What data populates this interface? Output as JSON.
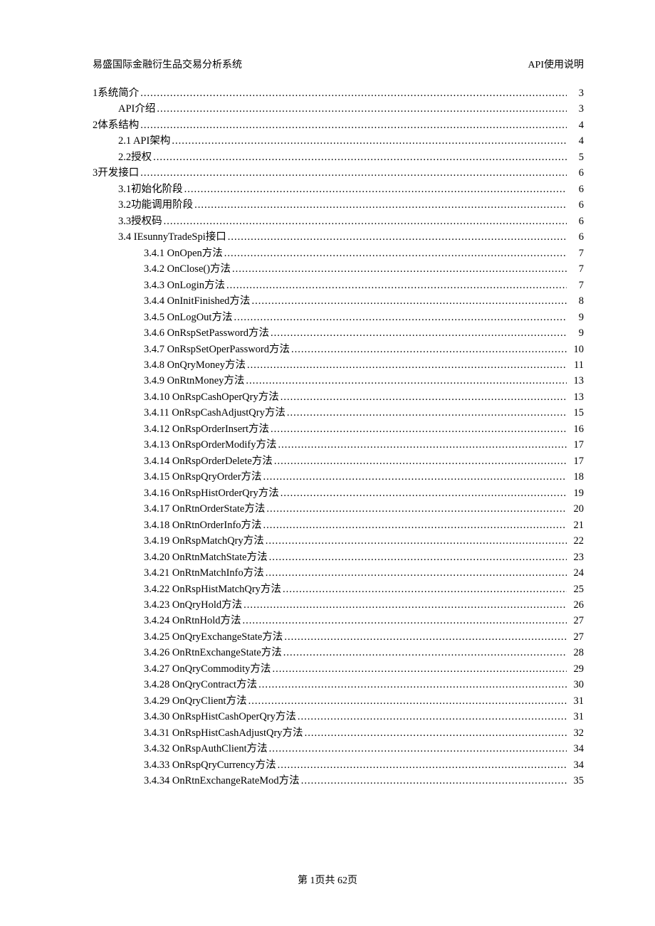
{
  "header": {
    "left": "易盛国际金融衍生品交易分析系统",
    "right": "API使用说明"
  },
  "toc": [
    {
      "indent": 0,
      "title": "1系统简介",
      "page": "3"
    },
    {
      "indent": 1,
      "title": "API介绍",
      "page": "3"
    },
    {
      "indent": 0,
      "title": "2体系结构",
      "page": "4"
    },
    {
      "indent": 1,
      "title": "2.1 API架构 ",
      "page": "4"
    },
    {
      "indent": 1,
      "title": "2.2授权",
      "page": "5"
    },
    {
      "indent": 0,
      "title": "3开发接口",
      "page": "6"
    },
    {
      "indent": 1,
      "title": "3.1初始化阶段",
      "page": "6"
    },
    {
      "indent": 1,
      "title": "3.2功能调用阶段",
      "page": "6"
    },
    {
      "indent": 1,
      "title": "3.3授权码",
      "page": "6"
    },
    {
      "indent": 1,
      "title": "3.4 IEsunnyTradeSpi接口",
      "page": "6"
    },
    {
      "indent": 2,
      "title": "3.4.1 OnOpen方法",
      "page": "7"
    },
    {
      "indent": 2,
      "title": "3.4.2 OnClose()方法",
      "page": "7"
    },
    {
      "indent": 2,
      "title": "3.4.3 OnLogin方法 ",
      "page": "7"
    },
    {
      "indent": 2,
      "title": "3.4.4 OnInitFinished方法",
      "page": "8"
    },
    {
      "indent": 2,
      "title": "3.4.5 OnLogOut方法 ",
      "page": "9"
    },
    {
      "indent": 2,
      "title": "3.4.6 OnRspSetPassword方法 ",
      "page": "9"
    },
    {
      "indent": 2,
      "title": "3.4.7 OnRspSetOperPassword方法 ",
      "page": "10"
    },
    {
      "indent": 2,
      "title": "3.4.8 OnQryMoney方法 ",
      "page": "11"
    },
    {
      "indent": 2,
      "title": "3.4.9 OnRtnMoney方法",
      "page": "13"
    },
    {
      "indent": 2,
      "title": "3.4.10 OnRspCashOperQry方法 ",
      "page": "13"
    },
    {
      "indent": 2,
      "title": "3.4.11 OnRspCashAdjustQry方法",
      "page": "15"
    },
    {
      "indent": 2,
      "title": "3.4.12 OnRspOrderInsert方法 ",
      "page": "16"
    },
    {
      "indent": 2,
      "title": "3.4.13 OnRspOrderModify方法 ",
      "page": "17"
    },
    {
      "indent": 2,
      "title": "3.4.14 OnRspOrderDelete方法",
      "page": "17"
    },
    {
      "indent": 2,
      "title": "3.4.15 OnRspQryOrder方法",
      "page": "18"
    },
    {
      "indent": 2,
      "title": "3.4.16 OnRspHistOrderQry方法 ",
      "page": "19"
    },
    {
      "indent": 2,
      "title": "3.4.17 OnRtnOrderState方法",
      "page": "20"
    },
    {
      "indent": 2,
      "title": "3.4.18 OnRtnOrderInfo方法",
      "page": "21"
    },
    {
      "indent": 2,
      "title": "3.4.19 OnRspMatchQry方法 ",
      "page": "22"
    },
    {
      "indent": 2,
      "title": "3.4.20 OnRtnMatchState方法",
      "page": "23"
    },
    {
      "indent": 2,
      "title": "3.4.21 OnRtnMatchInfo方法 ",
      "page": "24"
    },
    {
      "indent": 2,
      "title": "3.4.22 OnRspHistMatchQry方法",
      "page": "25"
    },
    {
      "indent": 2,
      "title": "3.4.23 OnQryHold方法",
      "page": "26"
    },
    {
      "indent": 2,
      "title": "3.4.24 OnRtnHold方法",
      "page": "27"
    },
    {
      "indent": 2,
      "title": "3.4.25 OnQryExchangeState方法",
      "page": "27"
    },
    {
      "indent": 2,
      "title": "3.4.26 OnRtnExchangeState方法 ",
      "page": "28"
    },
    {
      "indent": 2,
      "title": "3.4.27 OnQryCommodity方法",
      "page": "29"
    },
    {
      "indent": 2,
      "title": "3.4.28 OnQryContract方法",
      "page": "30"
    },
    {
      "indent": 2,
      "title": "3.4.29 OnQryClient方法",
      "page": "31"
    },
    {
      "indent": 2,
      "title": "3.4.30 OnRspHistCashOperQry方法",
      "page": "31"
    },
    {
      "indent": 2,
      "title": "3.4.31 OnRspHistCashAdjustQry方法 ",
      "page": "32"
    },
    {
      "indent": 2,
      "title": "3.4.32 OnRspAuthClient方法",
      "page": "34"
    },
    {
      "indent": 2,
      "title": "3.4.33 OnRspQryCurrency方法",
      "page": "34"
    },
    {
      "indent": 2,
      "title": "3.4.34 OnRtnExchangeRateMod方法",
      "page": "35"
    }
  ],
  "footer": {
    "text": "第  1页共      62页"
  }
}
